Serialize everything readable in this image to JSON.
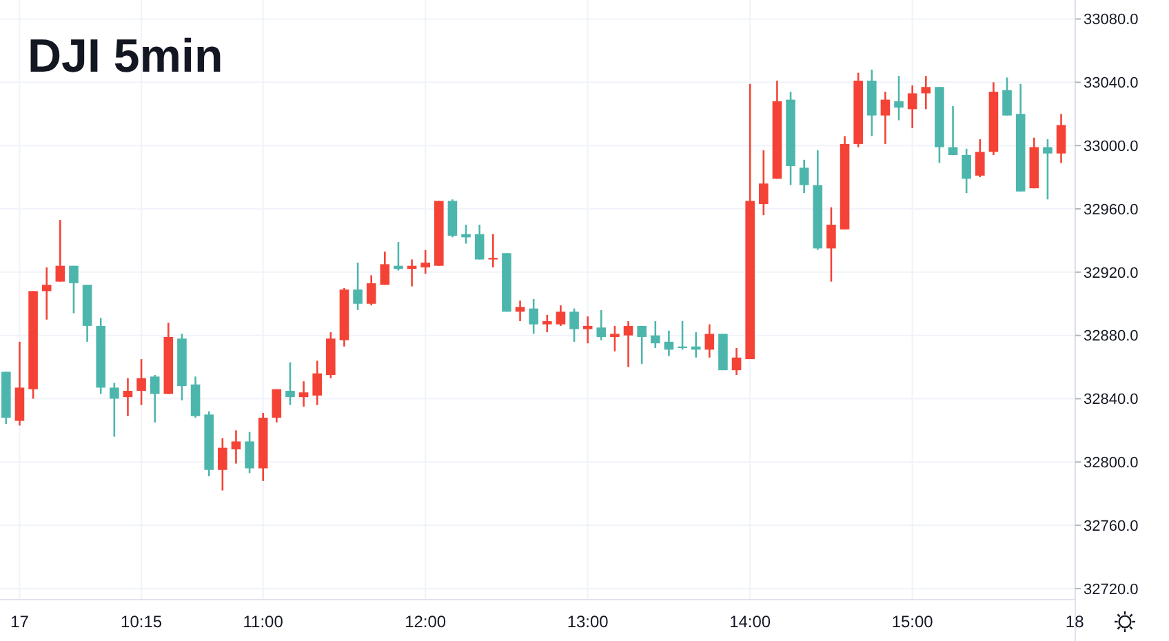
{
  "chart_data": {
    "type": "candlestick",
    "title": "DJI 5min",
    "categories": [
      null,
      "17",
      null,
      null,
      null,
      null,
      null,
      null,
      null,
      null,
      "10:15",
      null,
      null,
      null,
      null,
      null,
      null,
      null,
      null,
      "11:00",
      null,
      null,
      null,
      null,
      null,
      null,
      null,
      null,
      null,
      null,
      null,
      "12:00",
      null,
      null,
      null,
      null,
      null,
      null,
      null,
      null,
      null,
      null,
      null,
      "13:00",
      null,
      null,
      null,
      null,
      null,
      null,
      null,
      null,
      null,
      null,
      null,
      "14:00",
      null,
      null,
      null,
      null,
      null,
      null,
      null,
      null,
      null,
      null,
      null,
      "15:00",
      null,
      null,
      null,
      null,
      null,
      null,
      null,
      null,
      null,
      null,
      null,
      "18"
    ],
    "ohlc": [
      [
        32857,
        32857,
        32824,
        32828
      ],
      [
        32826,
        32876,
        32823,
        32847
      ],
      [
        32846,
        32908,
        32840,
        32908
      ],
      [
        32908,
        32923,
        32890,
        32912
      ],
      [
        32914,
        32953,
        32914,
        32924
      ],
      [
        32924,
        32924,
        32894,
        32913
      ],
      [
        32912,
        32912,
        32876,
        32886
      ],
      [
        32886,
        32891,
        32843,
        32847
      ],
      [
        32847,
        32850,
        32816,
        32840
      ],
      [
        32841,
        32853,
        32829,
        32845
      ],
      [
        32845,
        32865,
        32836,
        32853
      ],
      [
        32854,
        32855,
        32825,
        32843
      ],
      [
        32843,
        32888,
        32843,
        32879
      ],
      [
        32878,
        32881,
        32839,
        32848
      ],
      [
        32849,
        32854,
        32828,
        32829
      ],
      [
        32830,
        32832,
        32791,
        32795
      ],
      [
        32795,
        32815,
        32782,
        32809
      ],
      [
        32808,
        32820,
        32799,
        32813
      ],
      [
        32813,
        32819,
        32793,
        32796
      ],
      [
        32796,
        32831,
        32788,
        32828
      ],
      [
        32828,
        32846,
        32825,
        32846
      ],
      [
        32845,
        32863,
        32836,
        32841
      ],
      [
        32841,
        32851,
        32835,
        32844
      ],
      [
        32842,
        32864,
        32836,
        32856
      ],
      [
        32855,
        32882,
        32853,
        32878
      ],
      [
        32877,
        32910,
        32873,
        32909
      ],
      [
        32909,
        32926,
        32896,
        32900
      ],
      [
        32900,
        32918,
        32899,
        32913
      ],
      [
        32912,
        32933,
        32912,
        32925
      ],
      [
        32924,
        32939,
        32921,
        32922
      ],
      [
        32922,
        32928,
        32911,
        32924
      ],
      [
        32923,
        32934,
        32919,
        32926
      ],
      [
        32924,
        32965,
        32924,
        32965
      ],
      [
        32965,
        32966,
        32942,
        32943
      ],
      [
        32944,
        32950,
        32938,
        32942
      ],
      [
        32944,
        32950,
        32928,
        32928
      ],
      [
        32928,
        32944,
        32923,
        32929
      ],
      [
        32932,
        32932,
        32895,
        32895
      ],
      [
        32895,
        32902,
        32889,
        32898
      ],
      [
        32897,
        32903,
        32881,
        32887
      ],
      [
        32887,
        32893,
        32882,
        32889
      ],
      [
        32887,
        32899,
        32886,
        32895
      ],
      [
        32895,
        32897,
        32876,
        32884
      ],
      [
        32884,
        32892,
        32875,
        32886
      ],
      [
        32885,
        32896,
        32877,
        32879
      ],
      [
        32879,
        32886,
        32870,
        32881
      ],
      [
        32880,
        32889,
        32860,
        32886
      ],
      [
        32886,
        32886,
        32862,
        32879
      ],
      [
        32880,
        32889,
        32872,
        32875
      ],
      [
        32876,
        32883,
        32867,
        32871
      ],
      [
        32873,
        32889,
        32871,
        32872
      ],
      [
        32873,
        32882,
        32866,
        32871
      ],
      [
        32871,
        32887,
        32866,
        32881
      ],
      [
        32881,
        32881,
        32858,
        32858
      ],
      [
        32858,
        32872,
        32855,
        32866
      ],
      [
        32865,
        33039,
        32865,
        32965
      ],
      [
        32963,
        32997,
        32956,
        32976
      ],
      [
        32979,
        33041,
        32979,
        33028
      ],
      [
        33029,
        33034,
        32975,
        32987
      ],
      [
        32986,
        32991,
        32970,
        32975
      ],
      [
        32975,
        32997,
        32934,
        32935
      ],
      [
        32935,
        32961,
        32914,
        32950
      ],
      [
        32947,
        33006,
        32947,
        33001
      ],
      [
        33001,
        33046,
        32999,
        33041
      ],
      [
        33041,
        33048,
        33006,
        33019
      ],
      [
        33019,
        33034,
        33001,
        33029
      ],
      [
        33028,
        33044,
        33016,
        33024
      ],
      [
        33023,
        33038,
        33011,
        33033
      ],
      [
        33033,
        33044,
        33023,
        33037
      ],
      [
        33037,
        33037,
        32989,
        32999
      ],
      [
        32999,
        33025,
        32994,
        32994
      ],
      [
        32994,
        32998,
        32970,
        32979
      ],
      [
        32981,
        33004,
        32980,
        32996
      ],
      [
        32996,
        33040,
        32994,
        33034
      ],
      [
        33035,
        33043,
        33019,
        33019
      ],
      [
        33020,
        33039,
        32971,
        32971
      ],
      [
        32973,
        33005,
        32973,
        32999
      ],
      [
        32999,
        33004,
        32966,
        32995
      ],
      [
        32995,
        33020,
        32989,
        33013
      ],
      null
    ],
    "colors": [
      "#4db6ac",
      "#f44336",
      "#f44336",
      "#f44336",
      "#f44336",
      "#4db6ac",
      "#4db6ac",
      "#4db6ac",
      "#4db6ac",
      "#f44336",
      "#f44336",
      "#4db6ac",
      "#f44336",
      "#4db6ac",
      "#4db6ac",
      "#4db6ac",
      "#f44336",
      "#f44336",
      "#4db6ac",
      "#f44336",
      "#f44336",
      "#4db6ac",
      "#f44336",
      "#f44336",
      "#f44336",
      "#f44336",
      "#4db6ac",
      "#f44336",
      "#f44336",
      "#4db6ac",
      "#f44336",
      "#f44336",
      "#f44336",
      "#4db6ac",
      "#4db6ac",
      "#4db6ac",
      "#f44336",
      "#4db6ac",
      "#f44336",
      "#4db6ac",
      "#f44336",
      "#f44336",
      "#4db6ac",
      "#f44336",
      "#4db6ac",
      "#f44336",
      "#f44336",
      "#4db6ac",
      "#4db6ac",
      "#4db6ac",
      "#4db6ac",
      "#4db6ac",
      "#f44336",
      "#4db6ac",
      "#f44336",
      "#f44336",
      "#f44336",
      "#f44336",
      "#4db6ac",
      "#4db6ac",
      "#4db6ac",
      "#f44336",
      "#f44336",
      "#f44336",
      "#4db6ac",
      "#f44336",
      "#4db6ac",
      "#f44336",
      "#f44336",
      "#4db6ac",
      "#4db6ac",
      "#4db6ac",
      "#f44336",
      "#f44336",
      "#4db6ac",
      "#4db6ac",
      "#f44336",
      "#4db6ac",
      "#f44336",
      null
    ],
    "ylim": [
      32713,
      33092
    ],
    "yticks": [
      {
        "value": 32720,
        "label": "32720.0"
      },
      {
        "value": 32760,
        "label": "32760.0"
      },
      {
        "value": 32800,
        "label": "32800.0"
      },
      {
        "value": 32840,
        "label": "32840.0"
      },
      {
        "value": 32880,
        "label": "32880.0"
      },
      {
        "value": 32920,
        "label": "32920.0"
      },
      {
        "value": 32960,
        "label": "32960.0"
      },
      {
        "value": 33000,
        "label": "33000.0"
      },
      {
        "value": 33040,
        "label": "33040.0"
      },
      {
        "value": 33080,
        "label": "33080.0"
      }
    ],
    "grid": true
  }
}
